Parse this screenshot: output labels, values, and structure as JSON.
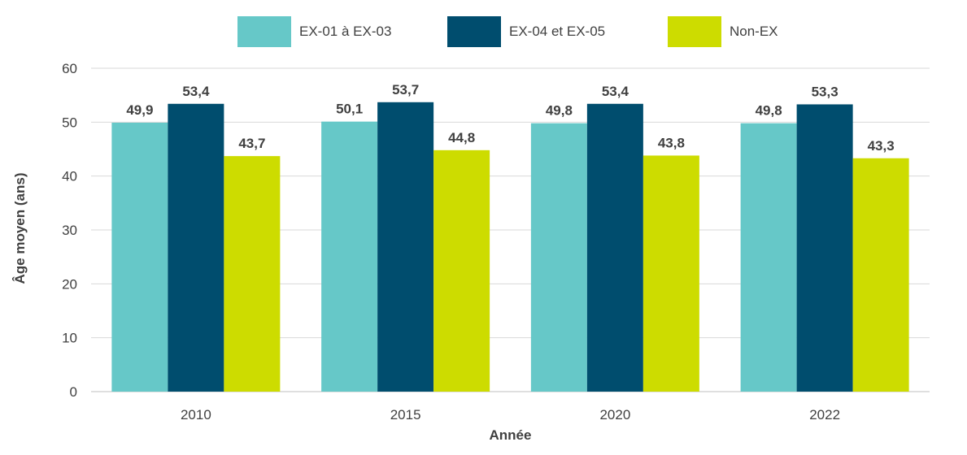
{
  "chart_data": {
    "type": "bar",
    "categories": [
      "2010",
      "2015",
      "2020",
      "2022"
    ],
    "series": [
      {
        "name": "EX-01 à EX-03",
        "color": "#66C8C8",
        "values": [
          49.9,
          50.1,
          49.8,
          49.8
        ],
        "labels": [
          "49,9",
          "50,1",
          "49,8",
          "49,8"
        ]
      },
      {
        "name": "EX-04 et EX-05",
        "color": "#004D6E",
        "values": [
          53.4,
          53.7,
          53.4,
          53.3
        ],
        "labels": [
          "53,4",
          "53,7",
          "53,4",
          "53,3"
        ]
      },
      {
        "name": "Non-EX",
        "color": "#CDDC00",
        "values": [
          43.7,
          44.8,
          43.8,
          43.3
        ],
        "labels": [
          "43,7",
          "44,8",
          "43,8",
          "43,3"
        ]
      }
    ],
    "xlabel": "Année",
    "ylabel": "Âge moyen (ans)",
    "ylim": [
      0,
      60
    ],
    "yticks": [
      0,
      10,
      20,
      30,
      40,
      50,
      60
    ],
    "grid": true,
    "legend_position": "top-center"
  }
}
